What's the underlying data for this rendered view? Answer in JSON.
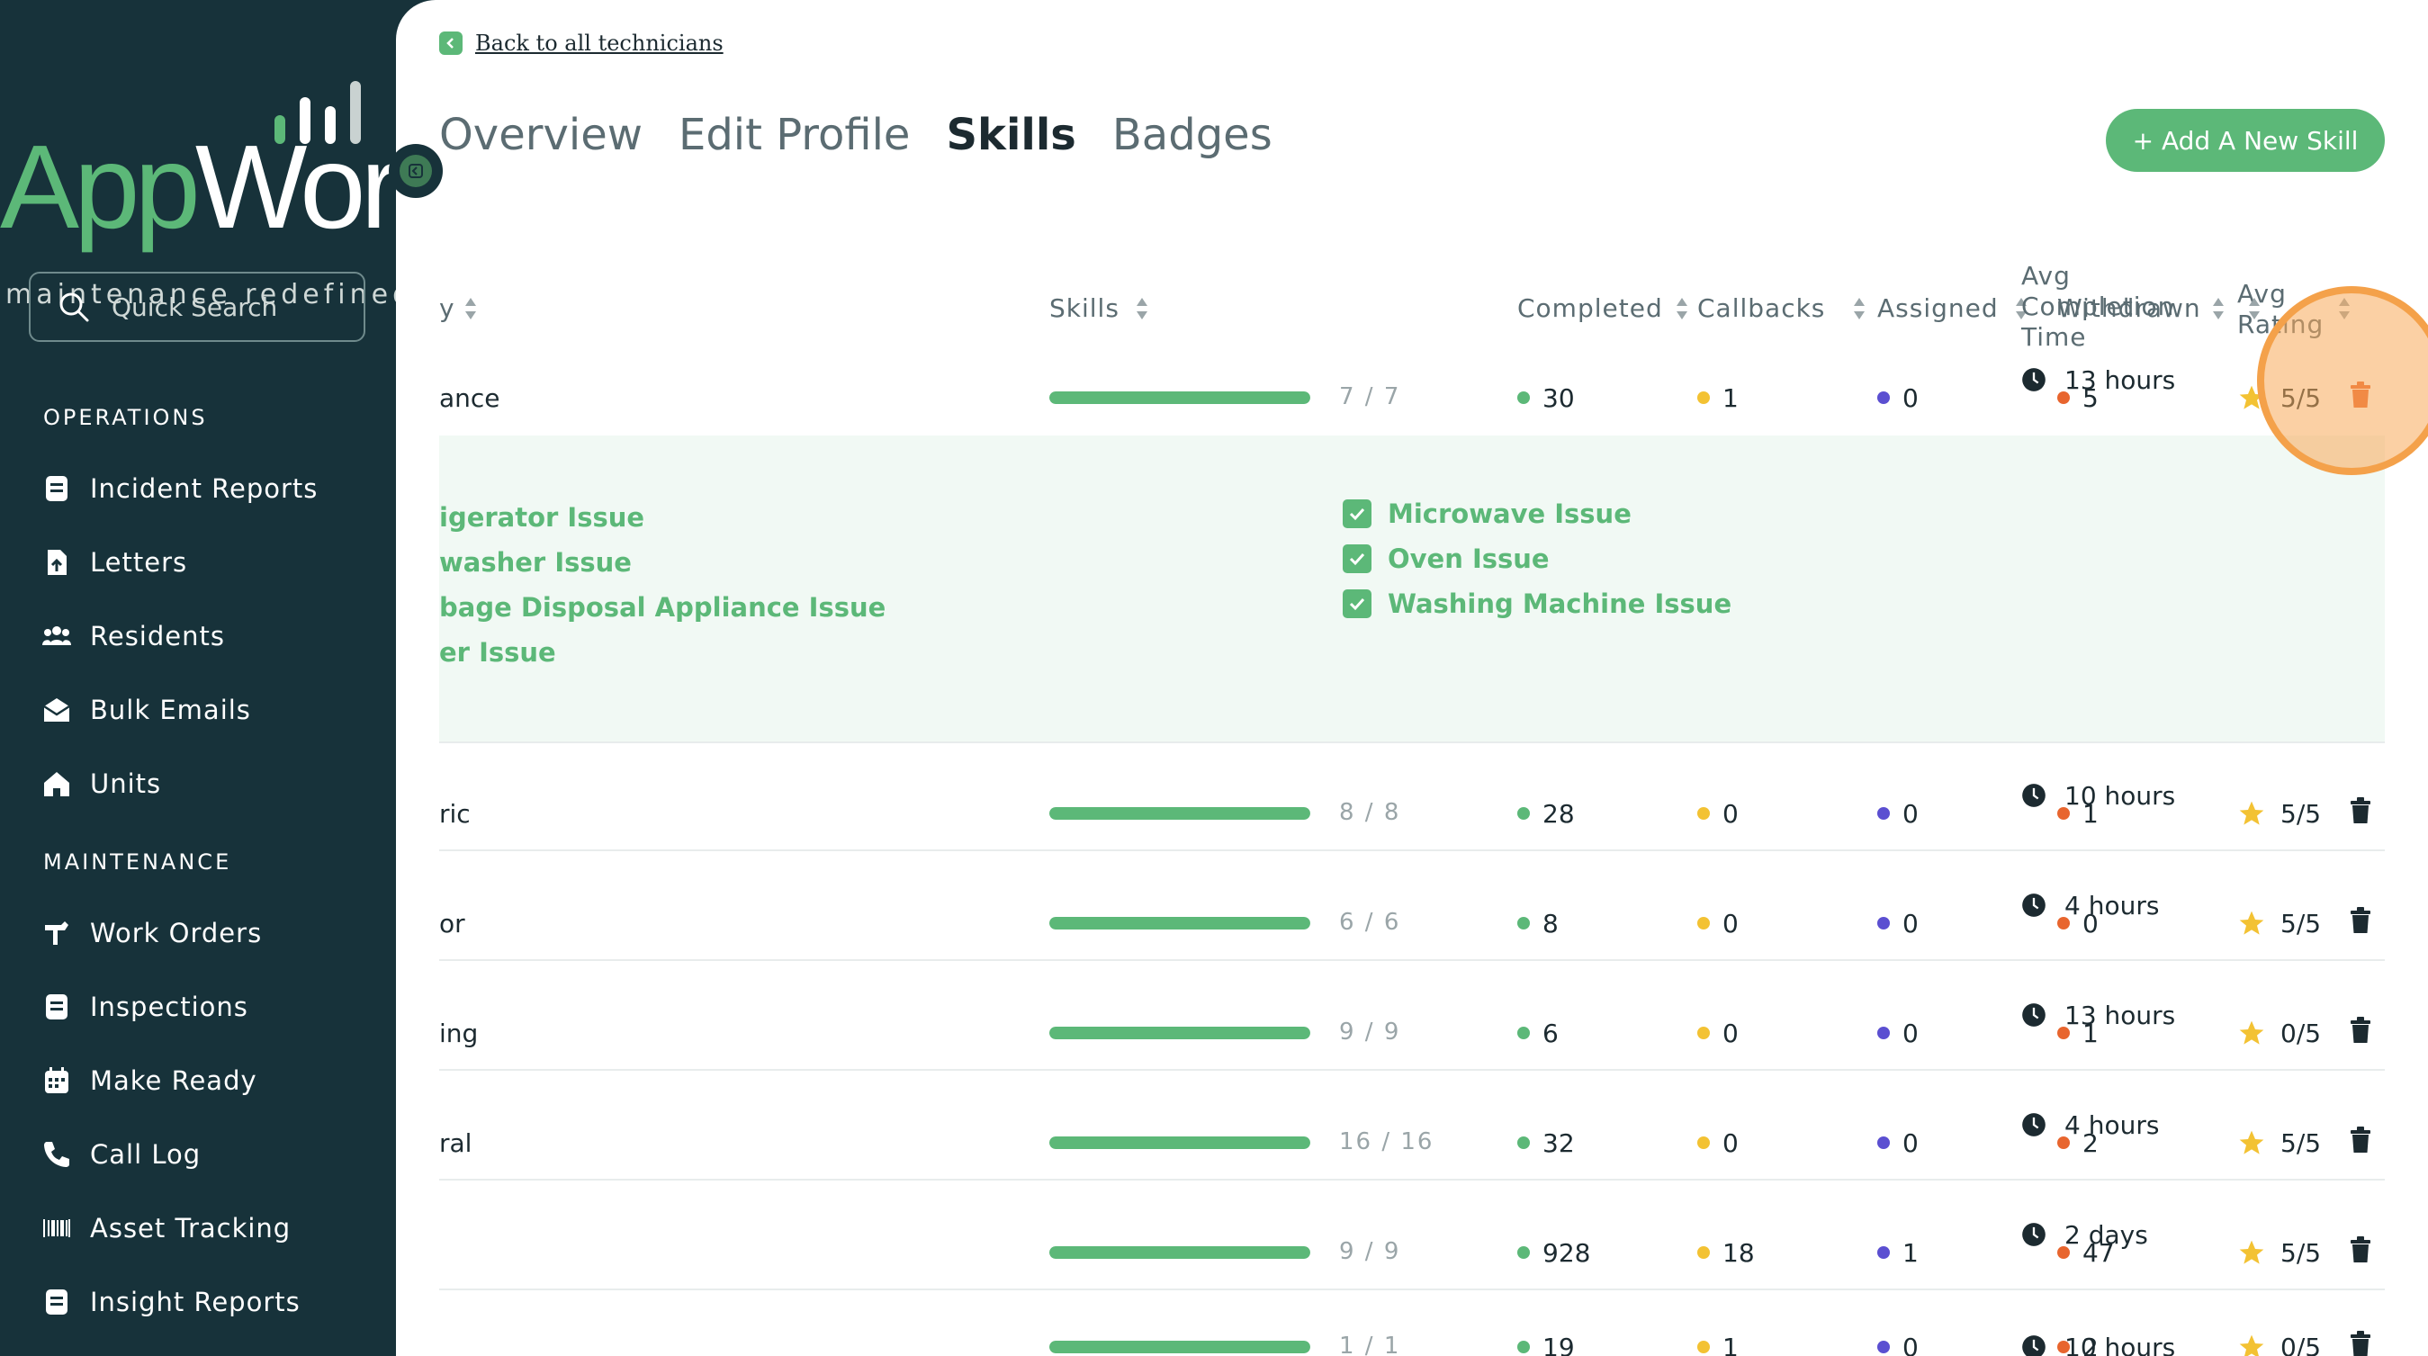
{
  "sidebar": {
    "logo_app": "App",
    "logo_work": "Work",
    "tagline": "maintenance redefined",
    "search_placeholder": "Quick Search",
    "sections": [
      {
        "title": "OPERATIONS",
        "items": [
          {
            "label": "Incident Reports",
            "icon": "document-icon"
          },
          {
            "label": "Letters",
            "icon": "file-upload-icon"
          },
          {
            "label": "Residents",
            "icon": "users-icon"
          },
          {
            "label": "Bulk Emails",
            "icon": "envelope-open-icon"
          },
          {
            "label": "Units",
            "icon": "home-icon"
          }
        ]
      },
      {
        "title": "MAINTENANCE",
        "items": [
          {
            "label": "Work Orders",
            "icon": "hammer-icon"
          },
          {
            "label": "Inspections",
            "icon": "document-icon"
          },
          {
            "label": "Make Ready",
            "icon": "calendar-icon"
          },
          {
            "label": "Call Log",
            "icon": "phone-icon"
          },
          {
            "label": "Asset Tracking",
            "icon": "barcode-icon"
          },
          {
            "label": "Insight Reports",
            "icon": "document-icon"
          }
        ]
      }
    ]
  },
  "header": {
    "back_label": "Back to all technicians",
    "tabs": [
      {
        "label": "Overview",
        "active": false
      },
      {
        "label": "Edit Profile",
        "active": false
      },
      {
        "label": "Skills",
        "active": true
      },
      {
        "label": "Badges",
        "active": false
      }
    ],
    "add_button": "+ Add A New Skill"
  },
  "table": {
    "columns": {
      "category_partial": "y",
      "skills": "Skills",
      "completed": "Completed",
      "callbacks": "Callbacks",
      "assigned": "Assigned",
      "withdrawn": "Withdrawn",
      "avg_rating_1": "Avg",
      "avg_rating_2": "Rating",
      "avg_time_1": "Avg",
      "avg_time_2": "Completion",
      "avg_time_3": "Time"
    },
    "rows": [
      {
        "category": "ance",
        "skills": "7 / 7",
        "fill": 1.0,
        "completed": "30",
        "callbacks": "1",
        "assigned": "0",
        "withdrawn": "5",
        "rating": "5/5",
        "time": "13 hours"
      },
      {
        "category": "ric",
        "skills": "8 / 8",
        "fill": 1.0,
        "completed": "28",
        "callbacks": "0",
        "assigned": "0",
        "withdrawn": "1",
        "rating": "5/5",
        "time": "10 hours"
      },
      {
        "category": "or",
        "skills": "6 / 6",
        "fill": 1.0,
        "completed": "8",
        "callbacks": "0",
        "assigned": "0",
        "withdrawn": "0",
        "rating": "5/5",
        "time": "4 hours"
      },
      {
        "category": "ing",
        "skills": "9 / 9",
        "fill": 1.0,
        "completed": "6",
        "callbacks": "0",
        "assigned": "0",
        "withdrawn": "1",
        "rating": "0/5",
        "time": "13 hours"
      },
      {
        "category": "ral",
        "skills": "16 / 16",
        "fill": 1.0,
        "completed": "32",
        "callbacks": "0",
        "assigned": "0",
        "withdrawn": "2",
        "rating": "5/5",
        "time": "4 hours"
      },
      {
        "category": "",
        "skills": "9 / 9",
        "fill": 1.0,
        "completed": "928",
        "callbacks": "18",
        "assigned": "1",
        "withdrawn": "47",
        "rating": "5/5",
        "time": "2 days"
      },
      {
        "category": "",
        "skills": "1 / 1",
        "fill": 1.0,
        "completed": "19",
        "callbacks": "1",
        "assigned": "0",
        "withdrawn": "2",
        "rating": "0/5",
        "time": "10 hours"
      }
    ],
    "expanded_skills_left": [
      "igerator Issue",
      "washer Issue",
      "bage Disposal Appliance Issue",
      "er Issue"
    ],
    "expanded_skills_right": [
      "Microwave Issue",
      "Oven Issue",
      "Washing Machine Issue"
    ]
  },
  "colors": {
    "sidebar_bg": "#17323a",
    "accent_green": "#5cb878",
    "completed_dot": "#5cb878",
    "callbacks_dot": "#f3c233",
    "assigned_dot": "#5b4fd1",
    "withdrawn_dot": "#e8652e",
    "star": "#f3c233",
    "trash_highlight": "#e8652e"
  }
}
